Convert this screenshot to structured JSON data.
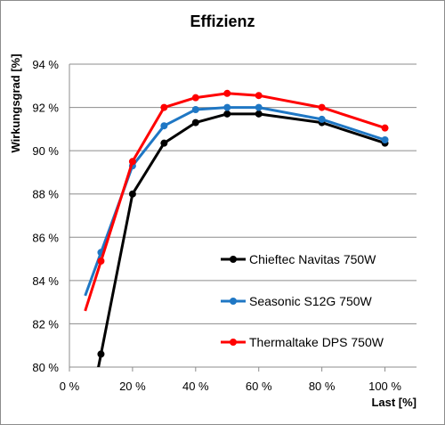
{
  "chart_data": {
    "type": "line",
    "title": "Effizienz",
    "xlabel": "Last [%]",
    "ylabel": "Wirkungsgrad [%]",
    "xlim": [
      0,
      110
    ],
    "ylim": [
      80,
      94
    ],
    "x_ticks": [
      {
        "value": 0,
        "label": "0 %"
      },
      {
        "value": 20,
        "label": "20 %"
      },
      {
        "value": 40,
        "label": "40 %"
      },
      {
        "value": 60,
        "label": "60 %"
      },
      {
        "value": 80,
        "label": "80 %"
      },
      {
        "value": 100,
        "label": "100 %"
      }
    ],
    "y_ticks": [
      {
        "value": 80,
        "label": "80 %"
      },
      {
        "value": 82,
        "label": "82 %"
      },
      {
        "value": 84,
        "label": "84 %"
      },
      {
        "value": 86,
        "label": "86 %"
      },
      {
        "value": 88,
        "label": "88 %"
      },
      {
        "value": 90,
        "label": "90 %"
      },
      {
        "value": 92,
        "label": "92 %"
      },
      {
        "value": 94,
        "label": "94 %"
      }
    ],
    "grid": "horizontal",
    "legend_position": "bottom-right",
    "series": [
      {
        "name": "Chieftec Navitas 750W",
        "color": "#000000",
        "x": [
          10,
          20,
          30,
          40,
          50,
          60,
          80,
          100
        ],
        "y": [
          80.6,
          88.0,
          90.35,
          91.3,
          91.7,
          91.7,
          91.3,
          90.35
        ]
      },
      {
        "name": "Seasonic S12G 750W",
        "color": "#1f77c4",
        "x": [
          10,
          20,
          30,
          40,
          50,
          60,
          80,
          100
        ],
        "y": [
          85.3,
          89.3,
          91.15,
          91.9,
          92.0,
          92.0,
          91.45,
          90.5
        ]
      },
      {
        "name": "Thermaltake DPS 750W",
        "color": "#ff0000",
        "x": [
          10,
          20,
          30,
          40,
          50,
          60,
          80,
          100
        ],
        "y": [
          84.9,
          89.5,
          92.0,
          92.45,
          92.65,
          92.55,
          92.0,
          91.05
        ]
      }
    ]
  }
}
